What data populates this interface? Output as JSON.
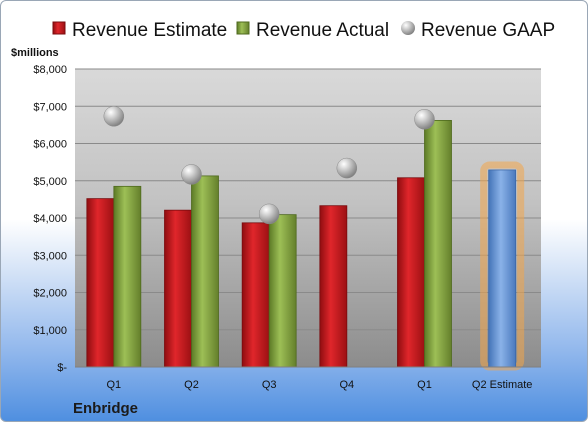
{
  "chart_data": {
    "type": "bar",
    "unit_label": "$millions",
    "company": "Enbridge",
    "categories": [
      "Q1",
      "Q2",
      "Q3",
      "Q4",
      "Q1",
      "Q2 Estimate"
    ],
    "y_ticks": [
      "$-",
      "$1,000",
      "$2,000",
      "$3,000",
      "$4,000",
      "$5,000",
      "$6,000",
      "$7,000",
      "$8,000"
    ],
    "ylim": [
      0,
      8000
    ],
    "grid": true,
    "legend_position": "top",
    "series": [
      {
        "name": "Revenue Estimate",
        "kind": "bar",
        "color": "#c0171c",
        "values": [
          4520,
          4210,
          3870,
          4330,
          5080,
          null
        ]
      },
      {
        "name": "Revenue Actual",
        "kind": "bar",
        "color": "#7fa03a",
        "values": [
          4850,
          5130,
          4090,
          null,
          6620,
          null
        ]
      },
      {
        "name": "Revenue GAAP",
        "kind": "marker",
        "color": "#a9a9a9",
        "values": [
          6730,
          5170,
          4110,
          5340,
          6650,
          null
        ]
      }
    ],
    "highlight": {
      "category_index": 5,
      "value": 5290,
      "color": "#5b8bd0",
      "glow": "#f3a64a"
    }
  }
}
